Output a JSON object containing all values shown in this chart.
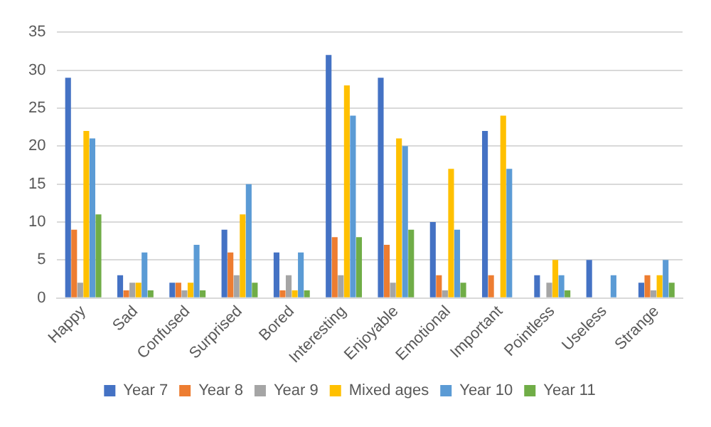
{
  "chart_data": {
    "type": "bar",
    "categories": [
      "Happy",
      "Sad",
      "Confused",
      "Surprised",
      "Bored",
      "Interesting",
      "Enjoyable",
      "Emotional",
      "Important",
      "Pointless",
      "Useless",
      "Strange"
    ],
    "series": [
      {
        "name": "Year 7",
        "color": "#4472c4",
        "values": [
          29,
          3,
          2,
          9,
          6,
          32,
          29,
          10,
          22,
          3,
          5,
          2
        ]
      },
      {
        "name": "Year 8",
        "color": "#ed7d31",
        "values": [
          9,
          1,
          2,
          6,
          1,
          8,
          7,
          3,
          3,
          0,
          0,
          3
        ]
      },
      {
        "name": "Year 9",
        "color": "#a5a5a5",
        "values": [
          2,
          2,
          1,
          3,
          3,
          3,
          2,
          1,
          0,
          2,
          0,
          1
        ]
      },
      {
        "name": "Mixed ages",
        "color": "#ffc000",
        "values": [
          22,
          2,
          2,
          11,
          1,
          28,
          21,
          17,
          24,
          5,
          0,
          3
        ]
      },
      {
        "name": "Year 10",
        "color": "#5b9bd5",
        "values": [
          21,
          6,
          7,
          15,
          6,
          24,
          20,
          9,
          17,
          3,
          3,
          5
        ]
      },
      {
        "name": "Year 11",
        "color": "#70ad47",
        "values": [
          11,
          1,
          1,
          2,
          1,
          8,
          9,
          2,
          0,
          1,
          0,
          2
        ]
      }
    ],
    "ylim": [
      0,
      35
    ],
    "yticks": [
      0,
      5,
      10,
      15,
      20,
      25,
      30,
      35
    ],
    "grid": "y",
    "legend": "bottom"
  }
}
